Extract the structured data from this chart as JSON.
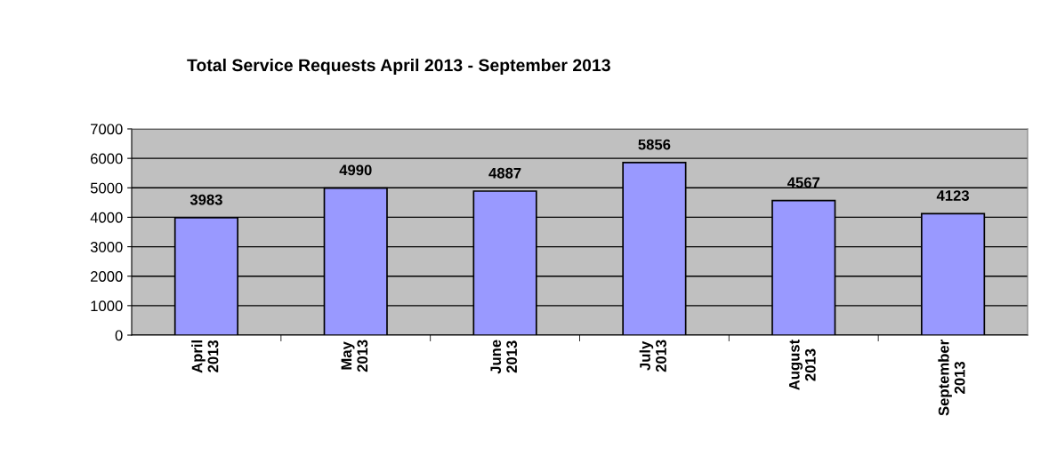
{
  "chart_data": {
    "type": "bar",
    "title": "Total Service Requests April 2013 - September 2013",
    "categories": [
      "April\n2013",
      "May\n2013",
      "June\n2013",
      "July\n2013",
      "August\n2013",
      "September\n2013"
    ],
    "values": [
      3983,
      4990,
      4887,
      5856,
      4567,
      4123
    ],
    "color": "#9999ff",
    "ylim": [
      0,
      7000
    ],
    "yticks": [
      0,
      1000,
      2000,
      3000,
      4000,
      5000,
      6000,
      7000
    ],
    "grid": "y",
    "data_labels": true
  }
}
